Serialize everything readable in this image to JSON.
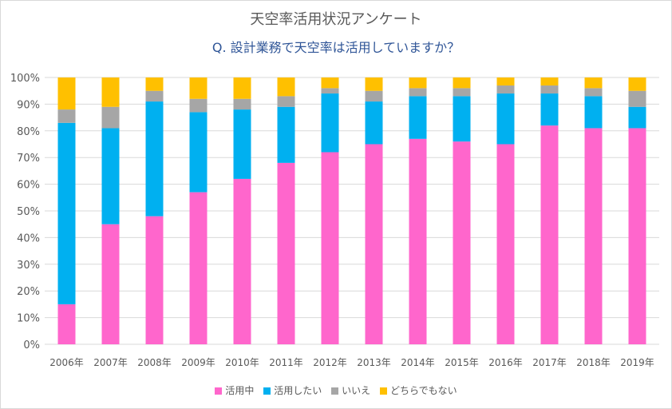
{
  "chart_data": {
    "type": "bar",
    "stacked": true,
    "title": "天空率活用状況アンケート",
    "subtitle": "Q.  設計業務で天空率は活用していますか？",
    "categories": [
      "2006年",
      "2007年",
      "2008年",
      "2009年",
      "2010年",
      "2011年",
      "2012年",
      "2013年",
      "2014年",
      "2015年",
      "2016年",
      "2017年",
      "2018年",
      "2019年"
    ],
    "series": [
      {
        "name": "活用中",
        "color": "#ff66cc",
        "values": [
          15,
          45,
          48,
          57,
          62,
          68,
          72,
          75,
          77,
          76,
          75,
          82,
          81,
          81
        ]
      },
      {
        "name": "活用したい",
        "color": "#00b0f0",
        "values": [
          68,
          36,
          43,
          30,
          26,
          21,
          22,
          16,
          16,
          17,
          19,
          12,
          12,
          8
        ]
      },
      {
        "name": "いいえ",
        "color": "#a6a6a6",
        "values": [
          5,
          8,
          4,
          5,
          4,
          4,
          2,
          4,
          3,
          3,
          3,
          3,
          3,
          6
        ]
      },
      {
        "name": "どちらでもない",
        "color": "#ffc000",
        "values": [
          12,
          11,
          5,
          8,
          8,
          7,
          4,
          5,
          4,
          4,
          3,
          3,
          4,
          5
        ]
      }
    ],
    "y_ticks": [
      "0%",
      "10%",
      "20%",
      "30%",
      "40%",
      "50%",
      "60%",
      "70%",
      "80%",
      "90%",
      "100%"
    ],
    "ylim": [
      0,
      100
    ],
    "xlabel": "",
    "ylabel": "",
    "grid": true,
    "legend_position": "bottom"
  }
}
